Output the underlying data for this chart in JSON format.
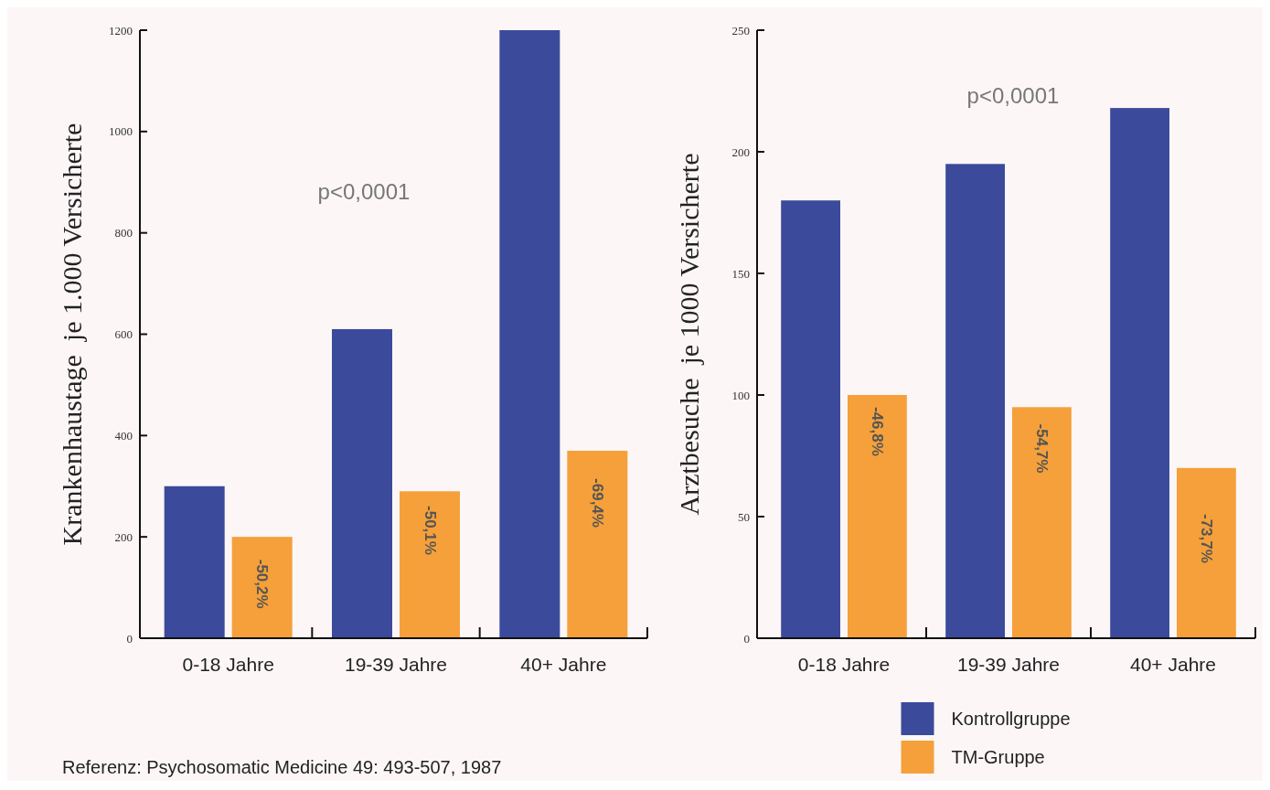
{
  "chart_data": [
    {
      "type": "bar",
      "ylabel": "Krankenhaustage  je 1.000 Versicherte",
      "categories": [
        "0-18 Jahre",
        "19-39 Jahre",
        "40+ Jahre"
      ],
      "series": [
        {
          "color": "#3b4a9a",
          "values": [
            300,
            610,
            1200
          ]
        },
        {
          "color": "#f5a03a",
          "values": [
            200,
            290,
            370
          ]
        }
      ],
      "ylim": [
        0,
        1200
      ],
      "yticks": [
        0,
        200,
        400,
        600,
        800,
        1000,
        1200
      ],
      "grid": false,
      "annotations": [
        {
          "text": "p<0,0001"
        },
        {
          "text": "Referenz: Psychosomatic Medicine 49: 493-507, 1987"
        },
        {
          "text": "-50,2%",
          "x": "0-18 Jahre",
          "y": 107
        },
        {
          "text": "-50,1%",
          "x": "19-39 Jahre",
          "y": 213
        },
        {
          "text": "-69,4%",
          "x": "40+ Jahre",
          "y": 267
        }
      ]
    },
    {
      "type": "bar",
      "ylabel": "Arztbesuche  je 1000 Versicherte",
      "categories": [
        "0-18 Jahre",
        "19-39 Jahre",
        "40+ Jahre"
      ],
      "series": [
        {
          "name": "Kontrollgruppe",
          "color": "#3b4a9a",
          "values": [
            180,
            195,
            218
          ]
        },
        {
          "name": "TM-Gruppe",
          "color": "#f5a03a",
          "values": [
            100,
            95,
            70
          ]
        }
      ],
      "ylim": [
        0,
        250
      ],
      "yticks": [
        0,
        50,
        100,
        150,
        200,
        250
      ],
      "grid": false,
      "legend": "bottom",
      "annotations": [
        {
          "text": "p<0,0001"
        },
        {
          "text": "-46,8%",
          "x": "0-18 Jahre",
          "y": 85
        },
        {
          "text": "-54,7%",
          "x": "19-39 Jahre",
          "y": 78
        },
        {
          "text": "-73,7%",
          "x": "40+ Jahre",
          "y": 41
        }
      ]
    }
  ]
}
